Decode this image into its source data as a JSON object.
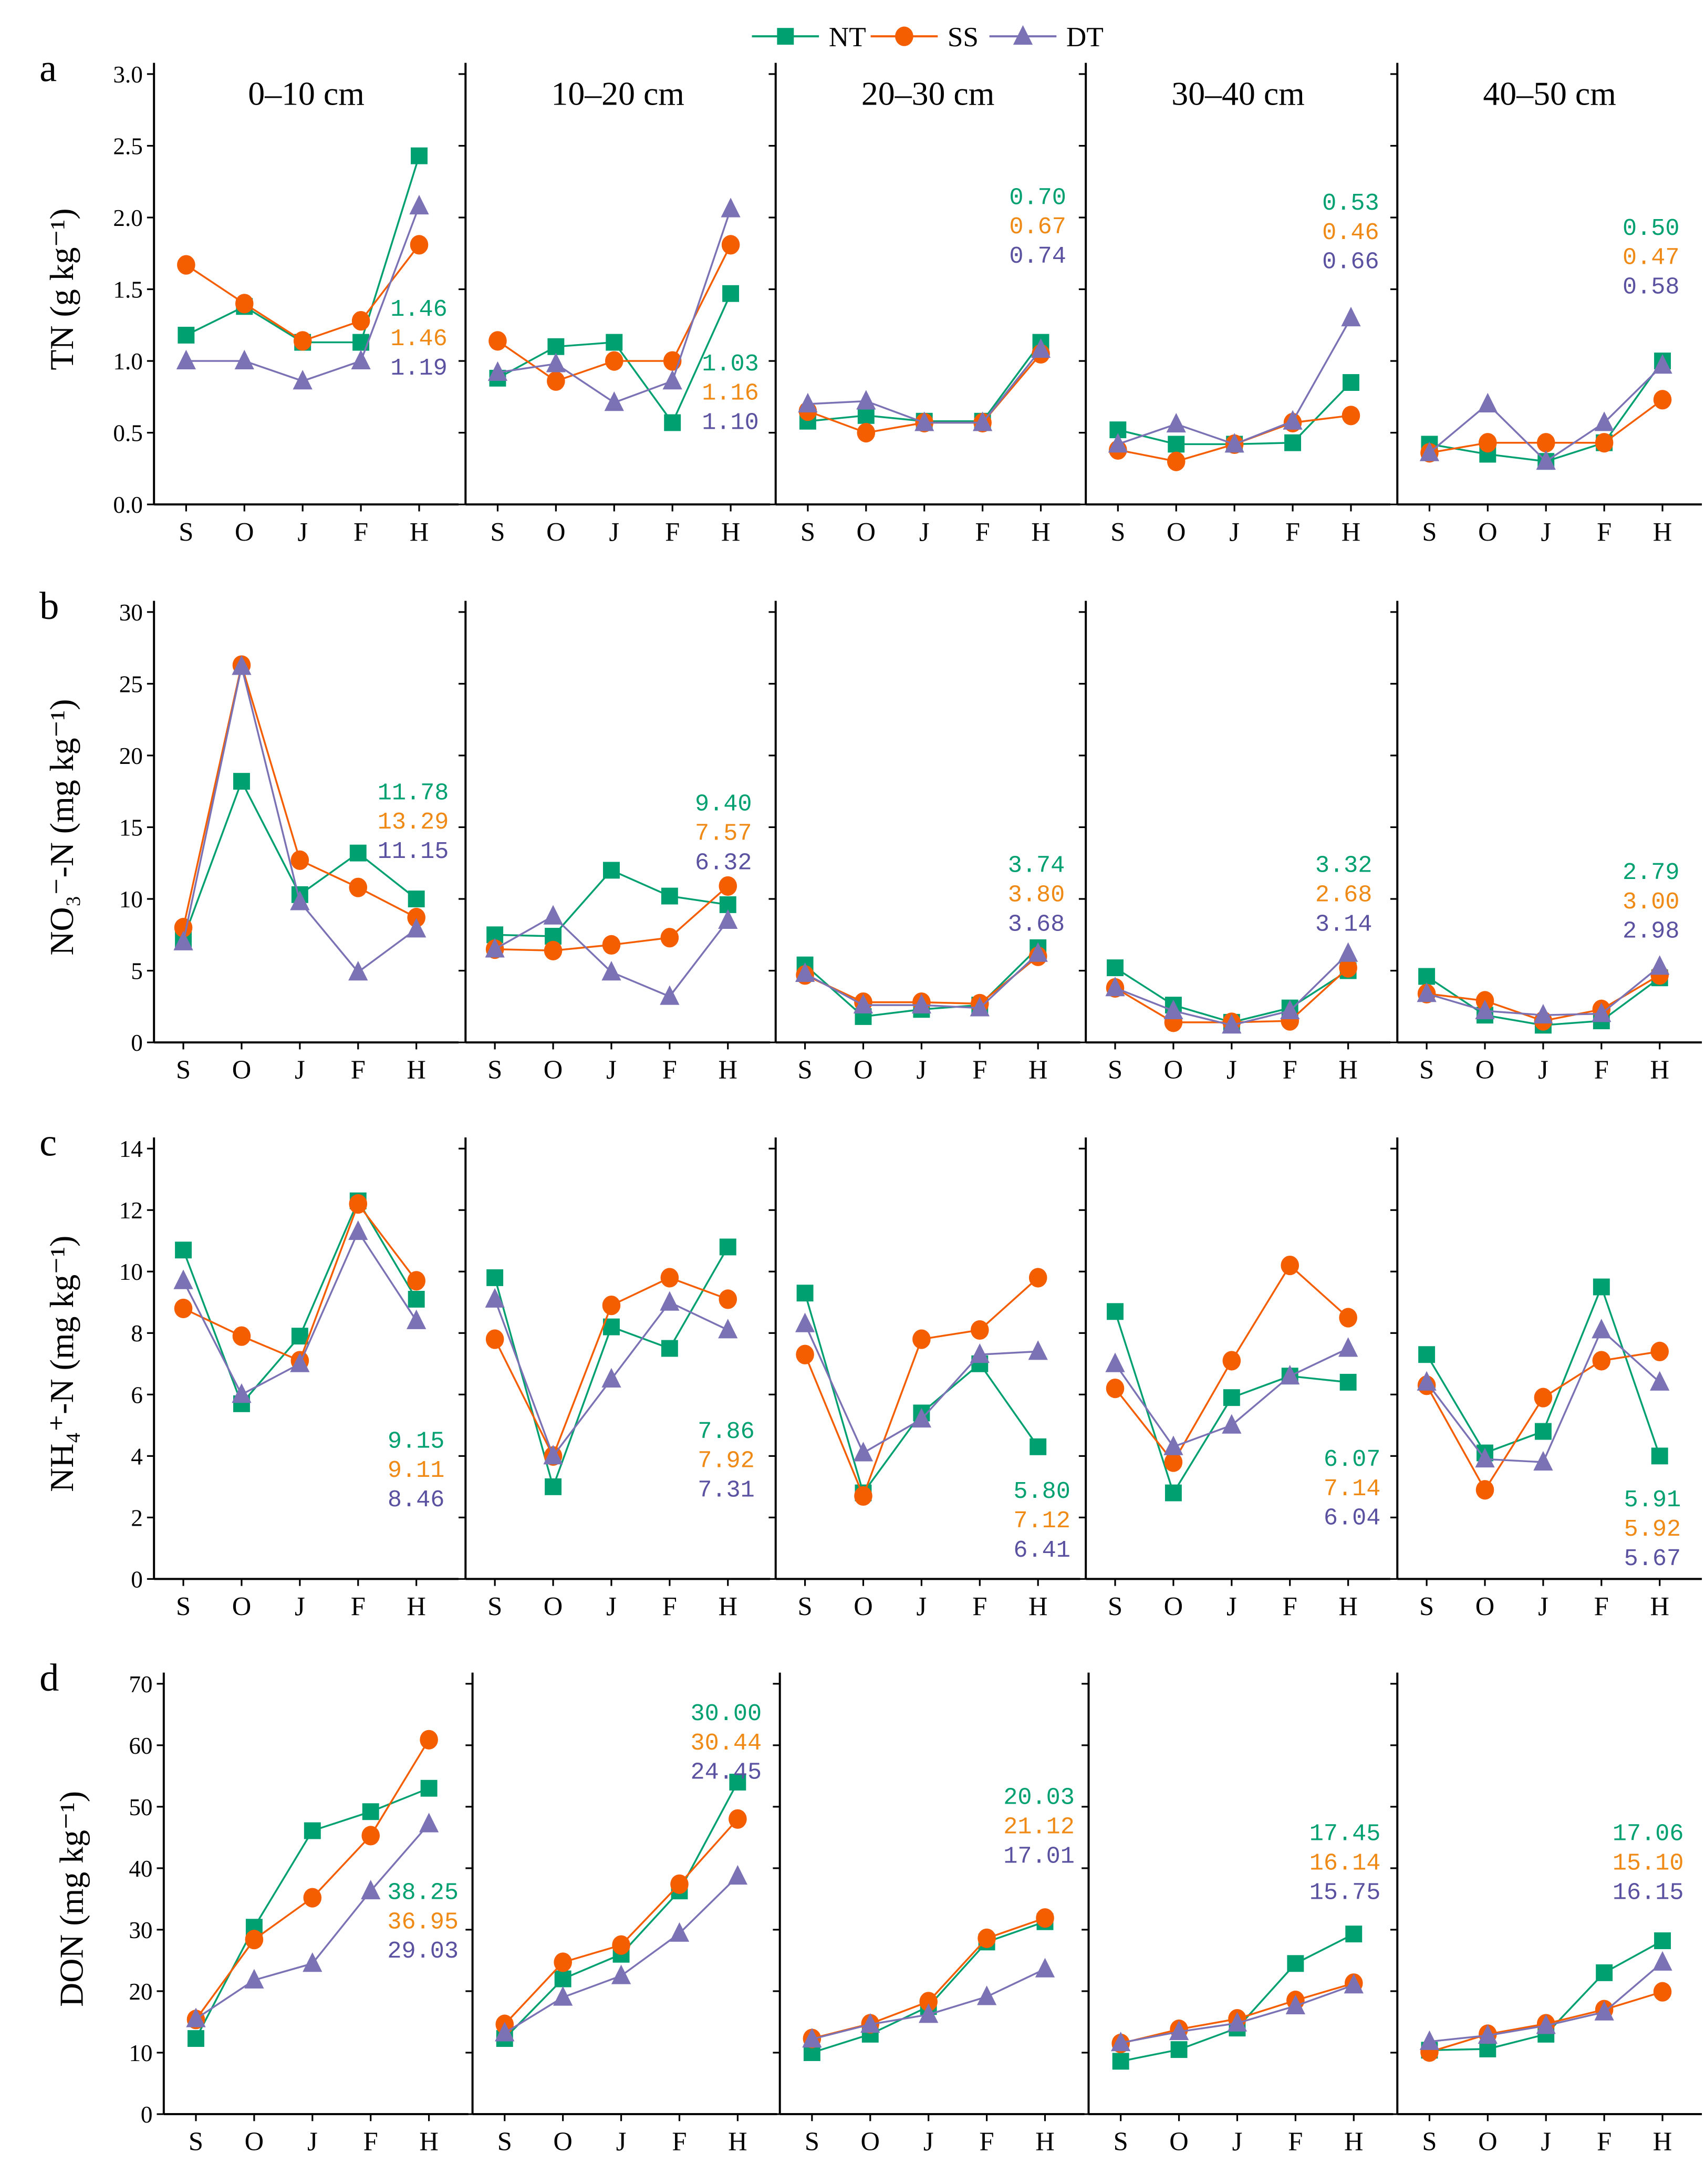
{
  "chart_data": {
    "type": "line",
    "legend": {
      "position": "top-center",
      "entries": [
        "NT",
        "SS",
        "DT"
      ]
    },
    "colors": {
      "NT": "#00a070",
      "SS": "#f45d00",
      "DT": "#7b72b5",
      "NT_label": "#00a070",
      "SS_label": "#ef8a17",
      "DT_label": "#5a52a0"
    },
    "categories": [
      "S",
      "O",
      "J",
      "F",
      "H"
    ],
    "depths": [
      "0–10 cm",
      "10–20 cm",
      "20–30 cm",
      "30–40 cm",
      "40–50 cm"
    ],
    "rows": [
      {
        "letter": "a",
        "ylabel": "TN (g kg⁻¹)",
        "ylim": [
          0,
          3
        ],
        "yticks": [
          "0.0",
          "0.5",
          "1.0",
          "1.5",
          "2.0",
          "2.5",
          "3.0"
        ],
        "panels": [
          {
            "NT": [
              1.18,
              1.38,
              1.13,
              1.13,
              2.43
            ],
            "SS": [
              1.67,
              1.4,
              1.14,
              1.28,
              1.81
            ],
            "DT": [
              1.0,
              1.0,
              0.86,
              1.0,
              2.08
            ],
            "labels": [
              "1.46",
              "1.46",
              "1.19"
            ]
          },
          {
            "NT": [
              0.88,
              1.1,
              1.13,
              0.57,
              1.47
            ],
            "SS": [
              1.14,
              0.86,
              1.0,
              1.0,
              1.81
            ],
            "DT": [
              0.92,
              0.98,
              0.71,
              0.86,
              2.06
            ],
            "labels": [
              "1.03",
              "1.16",
              "1.10"
            ]
          },
          {
            "NT": [
              0.58,
              0.62,
              0.58,
              0.58,
              1.13
            ],
            "SS": [
              0.65,
              0.5,
              0.57,
              0.57,
              1.05
            ],
            "DT": [
              0.7,
              0.72,
              0.57,
              0.57,
              1.08
            ],
            "labels": [
              "0.70",
              "0.67",
              "0.74"
            ]
          },
          {
            "NT": [
              0.52,
              0.42,
              0.42,
              0.43,
              0.85
            ],
            "SS": [
              0.38,
              0.3,
              0.42,
              0.57,
              0.62
            ],
            "DT": [
              0.42,
              0.56,
              0.42,
              0.58,
              1.3
            ],
            "labels": [
              "0.53",
              "0.46",
              "0.66"
            ]
          },
          {
            "NT": [
              0.42,
              0.35,
              0.3,
              0.43,
              1.0
            ],
            "SS": [
              0.36,
              0.43,
              0.43,
              0.43,
              0.73
            ],
            "DT": [
              0.36,
              0.7,
              0.3,
              0.57,
              0.97
            ],
            "labels": [
              "0.50",
              "0.47",
              "0.58"
            ]
          }
        ]
      },
      {
        "letter": "b",
        "ylabel": "NO₃⁻-N (mg kg⁻¹)",
        "ylim": [
          0,
          30
        ],
        "yticks": [
          "0",
          "5",
          "10",
          "15",
          "20",
          "25",
          "30"
        ],
        "panels": [
          {
            "NT": [
              7.2,
              18.2,
              10.3,
              13.2,
              10.0
            ],
            "SS": [
              8.0,
              26.3,
              12.7,
              10.8,
              8.7
            ],
            "DT": [
              7.0,
              26.2,
              9.8,
              4.9,
              7.9
            ],
            "labels": [
              "11.78",
              "13.29",
              "11.15"
            ]
          },
          {
            "NT": [
              7.5,
              7.4,
              12.0,
              10.2,
              9.6
            ],
            "SS": [
              6.5,
              6.4,
              6.8,
              7.3,
              10.9
            ],
            "DT": [
              6.5,
              8.8,
              4.9,
              3.2,
              8.5
            ],
            "labels": [
              "9.40",
              "7.57",
              "6.32"
            ]
          },
          {
            "NT": [
              5.4,
              1.8,
              2.3,
              2.6,
              6.6
            ],
            "SS": [
              4.7,
              2.8,
              2.8,
              2.7,
              6.0
            ],
            "DT": [
              4.8,
              2.6,
              2.6,
              2.4,
              6.2
            ],
            "labels": [
              "3.74",
              "3.80",
              "3.68"
            ]
          },
          {
            "NT": [
              5.2,
              2.6,
              1.4,
              2.4,
              5.0
            ],
            "SS": [
              3.8,
              1.4,
              1.4,
              1.5,
              5.2
            ],
            "DT": [
              3.8,
              2.2,
              1.2,
              2.2,
              6.2
            ],
            "labels": [
              "3.32",
              "2.68",
              "3.14"
            ]
          },
          {
            "NT": [
              4.6,
              1.9,
              1.2,
              1.5,
              4.5
            ],
            "SS": [
              3.4,
              2.9,
              1.5,
              2.3,
              4.7
            ],
            "DT": [
              3.4,
              2.2,
              1.9,
              2.0,
              5.3
            ],
            "labels": [
              "2.79",
              "3.00",
              "2.98"
            ]
          }
        ]
      },
      {
        "letter": "c",
        "ylabel": "NH₄⁺-N (mg kg⁻¹)",
        "ylim": [
          0,
          14
        ],
        "yticks": [
          "0",
          "2",
          "4",
          "6",
          "8",
          "10",
          "12",
          "14"
        ],
        "panels": [
          {
            "NT": [
              10.7,
              5.7,
              7.9,
              12.3,
              9.1
            ],
            "SS": [
              8.8,
              7.9,
              7.1,
              12.2,
              9.7
            ],
            "DT": [
              9.7,
              6.0,
              7.0,
              11.3,
              8.4
            ],
            "labels": [
              "9.15",
              "9.11",
              "8.46"
            ]
          },
          {
            "NT": [
              9.8,
              3.0,
              8.2,
              7.5,
              10.8
            ],
            "SS": [
              7.8,
              4.0,
              8.9,
              9.8,
              9.1
            ],
            "DT": [
              9.1,
              4.0,
              6.5,
              9.0,
              8.1
            ],
            "labels": [
              "7.86",
              "7.92",
              "7.31"
            ]
          },
          {
            "NT": [
              9.3,
              2.8,
              5.4,
              7.0,
              4.3
            ],
            "SS": [
              7.3,
              2.7,
              7.8,
              8.1,
              9.8
            ],
            "DT": [
              8.3,
              4.1,
              5.2,
              7.3,
              7.4
            ],
            "labels": [
              "5.80",
              "7.12",
              "6.41"
            ]
          },
          {
            "NT": [
              8.7,
              2.8,
              5.9,
              6.6,
              6.4
            ],
            "SS": [
              6.2,
              3.8,
              7.1,
              10.2,
              8.5
            ],
            "DT": [
              7.0,
              4.3,
              5.0,
              6.6,
              7.5
            ],
            "labels": [
              "6.07",
              "7.14",
              "6.04"
            ]
          },
          {
            "NT": [
              7.3,
              4.1,
              4.8,
              9.5,
              4.0
            ],
            "SS": [
              6.3,
              2.9,
              5.9,
              7.1,
              7.4
            ],
            "DT": [
              6.4,
              3.9,
              3.8,
              8.1,
              6.4
            ],
            "labels": [
              "5.91",
              "5.92",
              "5.67"
            ]
          }
        ]
      },
      {
        "letter": "d",
        "ylabel": "DON (mg kg⁻¹)",
        "ylim": [
          0,
          70
        ],
        "yticks": [
          "0",
          "10",
          "20",
          "30",
          "40",
          "50",
          "60",
          "70"
        ],
        "panels": [
          {
            "NT": [
              12.3,
              30.4,
              46.1,
              49.2,
              53.0
            ],
            "SS": [
              15.4,
              28.4,
              35.2,
              45.3,
              60.9
            ],
            "DT": [
              15.5,
              21.8,
              24.5,
              36.3,
              47.2
            ],
            "labels": [
              "38.25",
              "36.95",
              "29.03"
            ]
          },
          {
            "NT": [
              12.3,
              22.0,
              26.0,
              36.3,
              54.0
            ],
            "SS": [
              14.6,
              24.7,
              27.5,
              37.4,
              48.0
            ],
            "DT": [
              13.2,
              19.0,
              22.5,
              29.4,
              38.7
            ],
            "labels": [
              "30.00",
              "30.44",
              "24.45"
            ]
          },
          {
            "NT": [
              10.0,
              13.0,
              17.5,
              28.0,
              31.3
            ],
            "SS": [
              12.3,
              14.7,
              18.3,
              28.6,
              31.9
            ],
            "DT": [
              12.2,
              14.6,
              16.2,
              19.1,
              23.6
            ],
            "labels": [
              "20.03",
              "21.12",
              "17.01"
            ]
          },
          {
            "NT": [
              8.6,
              10.5,
              14.0,
              24.5,
              29.3
            ],
            "SS": [
              11.5,
              13.8,
              15.5,
              18.5,
              21.3
            ],
            "DT": [
              11.6,
              13.4,
              14.8,
              17.6,
              21.0
            ],
            "labels": [
              "17.45",
              "16.14",
              "15.75"
            ]
          },
          {
            "NT": [
              10.4,
              10.6,
              13.0,
              23.0,
              28.2
            ],
            "SS": [
              10.1,
              13.0,
              14.7,
              17.0,
              19.9
            ],
            "DT": [
              11.8,
              12.8,
              14.4,
              16.6,
              24.7
            ],
            "labels": [
              "17.06",
              "15.10",
              "16.15"
            ]
          }
        ]
      }
    ]
  }
}
